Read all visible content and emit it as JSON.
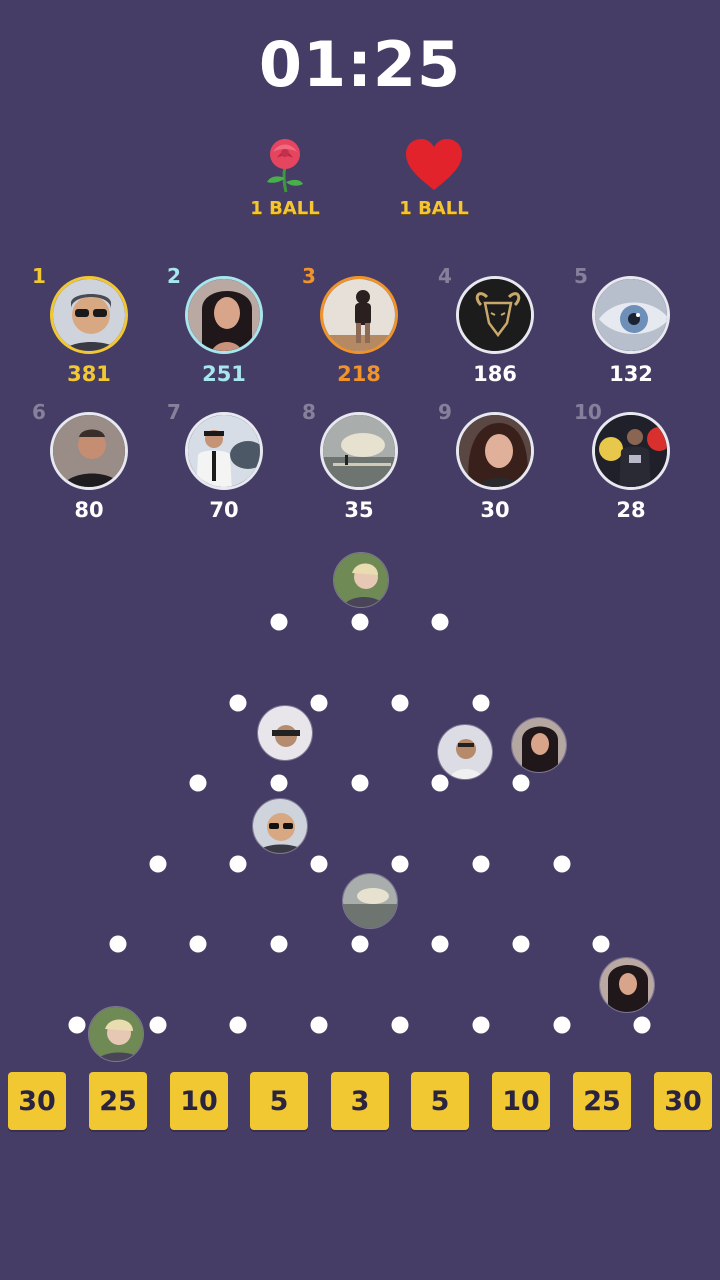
{
  "timer": "01:25",
  "gifts": [
    {
      "icon": "rose-icon",
      "label": "1 BALL"
    },
    {
      "icon": "heart-icon",
      "label": "1 BALL"
    }
  ],
  "leaderboard": [
    {
      "rank": "1",
      "score": "381",
      "ring": "#f2c832",
      "avatar": "man-sunglasses"
    },
    {
      "rank": "2",
      "score": "251",
      "ring": "#a8e6ee",
      "avatar": "woman-dark-hair"
    },
    {
      "rank": "3",
      "score": "218",
      "ring": "#f0932b",
      "avatar": "person-standing"
    },
    {
      "rank": "4",
      "score": "186",
      "ring": "#e8e8ef",
      "avatar": "ram-logo"
    },
    {
      "rank": "5",
      "score": "132",
      "ring": "#e8e8ef",
      "avatar": "eye-closeup"
    },
    {
      "rank": "6",
      "score": "80",
      "ring": "#e8e8ef",
      "avatar": "man-portrait"
    },
    {
      "rank": "7",
      "score": "70",
      "ring": "#e8e8ef",
      "avatar": "pilot"
    },
    {
      "rank": "8",
      "score": "35",
      "ring": "#e8e8ef",
      "avatar": "sea-sunset"
    },
    {
      "rank": "9",
      "score": "30",
      "ring": "#e8e8ef",
      "avatar": "girl-curly-hair"
    },
    {
      "rank": "10",
      "score": "28",
      "ring": "#e8e8ef",
      "avatar": "football-player"
    }
  ],
  "buckets": [
    "30",
    "25",
    "10",
    "5",
    "3",
    "5",
    "10",
    "25",
    "30"
  ],
  "colors": {
    "background": "#453d66",
    "bucket": "#f2c832",
    "rank_gold": "#f2c832",
    "rank_silver": "#a8e6ee",
    "rank_bronze": "#f0932b",
    "gift_label": "#f5c533"
  }
}
